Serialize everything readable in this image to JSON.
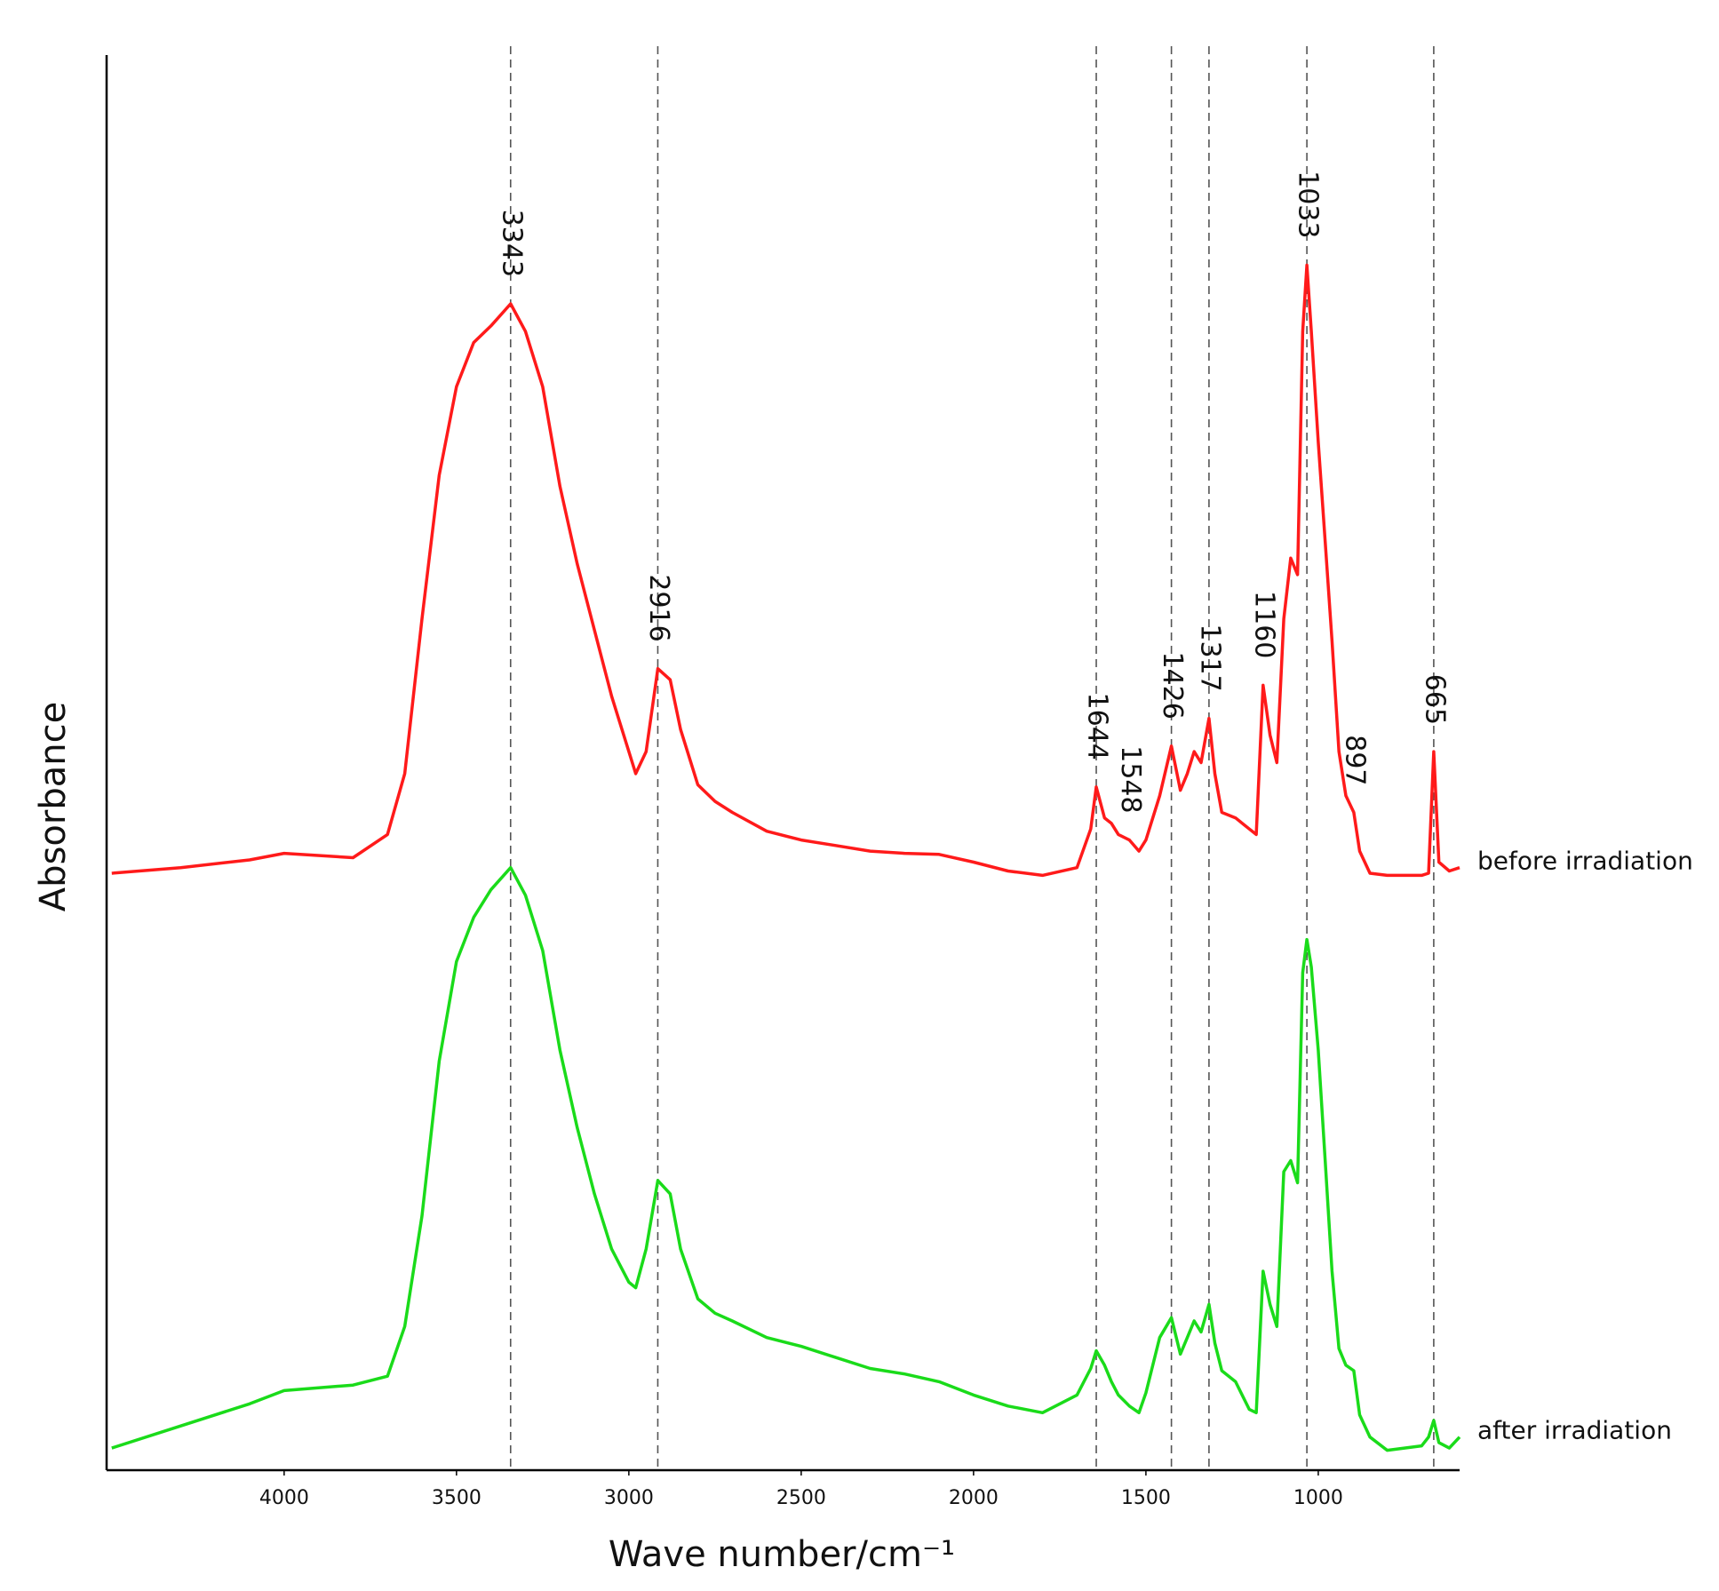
{
  "chart_data": {
    "type": "line",
    "xlabel": "Wave number/cm⁻¹",
    "ylabel": "Absorbance",
    "xlim": [
      4515,
      590
    ],
    "ylim": [
      0,
      128
    ],
    "xticks": [
      4000,
      3500,
      3000,
      2500,
      2000,
      1500,
      1000
    ],
    "x": [
      4500,
      4300,
      4100,
      4000,
      3800,
      3700,
      3650,
      3600,
      3550,
      3500,
      3450,
      3400,
      3343,
      3300,
      3250,
      3200,
      3150,
      3100,
      3050,
      3000,
      2980,
      2950,
      2916,
      2880,
      2850,
      2800,
      2750,
      2700,
      2600,
      2500,
      2400,
      2300,
      2200,
      2100,
      2000,
      1900,
      1800,
      1700,
      1660,
      1644,
      1620,
      1600,
      1580,
      1548,
      1520,
      1500,
      1460,
      1426,
      1400,
      1380,
      1360,
      1340,
      1317,
      1300,
      1280,
      1240,
      1200,
      1180,
      1160,
      1140,
      1120,
      1100,
      1080,
      1060,
      1045,
      1033,
      1020,
      1000,
      980,
      960,
      940,
      920,
      897,
      880,
      850,
      800,
      700,
      680,
      665,
      650,
      620,
      590
    ],
    "series": [
      {
        "name": "before irradiation",
        "color": "#ff1a1a",
        "values": [
          54,
          54.5,
          55.2,
          55.8,
          55.4,
          57.5,
          63,
          77,
          90,
          98,
          102,
          103.5,
          105.5,
          103,
          98,
          89,
          82,
          76,
          70,
          65,
          63,
          65,
          72.5,
          71.5,
          67,
          62,
          60.5,
          59.5,
          57.8,
          57,
          56.5,
          56,
          55.8,
          55.7,
          55,
          54.2,
          53.8,
          54.5,
          58,
          61.8,
          59,
          58.5,
          57.5,
          57,
          56,
          57,
          61,
          65.5,
          61.5,
          63,
          65,
          64,
          68,
          63,
          59.5,
          59,
          58,
          57.5,
          71,
          66.5,
          64,
          77,
          82.5,
          81,
          103,
          109,
          103,
          93,
          84,
          75,
          65,
          61,
          59.5,
          56,
          54,
          53.8,
          53.8,
          54,
          65,
          55,
          54.2,
          54.5
        ]
      },
      {
        "name": "after irradiation",
        "color": "#1adb1a",
        "values": [
          2,
          4,
          6,
          7.2,
          7.7,
          8.5,
          13,
          23,
          37,
          46,
          50,
          52.5,
          54.5,
          52,
          47,
          38,
          31,
          25,
          20,
          17,
          16.5,
          20,
          26.2,
          25,
          20,
          15.5,
          14.2,
          13.5,
          12,
          11.2,
          10.2,
          9.2,
          8.7,
          8,
          6.8,
          5.8,
          5.2,
          6.8,
          9.2,
          10.8,
          9.5,
          8,
          6.8,
          5.8,
          5.2,
          7,
          12,
          13.8,
          10.5,
          12,
          13.5,
          12.5,
          15,
          11.5,
          9,
          8,
          5.5,
          5.2,
          18,
          15,
          13,
          27,
          28,
          26,
          45,
          48,
          45.5,
          38,
          28,
          18,
          11,
          9.5,
          9,
          5,
          3,
          1.8,
          2.2,
          3,
          4.5,
          2.5,
          2,
          3
        ]
      }
    ],
    "annotations": [
      {
        "value": 3343,
        "label": "3343",
        "dashed": true
      },
      {
        "value": 2916,
        "label": "2916",
        "dashed": true
      },
      {
        "value": 1644,
        "label": "1644",
        "dashed": true
      },
      {
        "value": 1548,
        "label": "1548",
        "dashed": false
      },
      {
        "value": 1426,
        "label": "1426",
        "dashed": true
      },
      {
        "value": 1317,
        "label": "1317",
        "dashed": true
      },
      {
        "value": 1160,
        "label": "1160",
        "dashed": false
      },
      {
        "value": 1033,
        "label": "1033",
        "dashed": true
      },
      {
        "value": 897,
        "label": "897",
        "dashed": false
      },
      {
        "value": 665,
        "label": "665",
        "dashed": true
      }
    ]
  }
}
